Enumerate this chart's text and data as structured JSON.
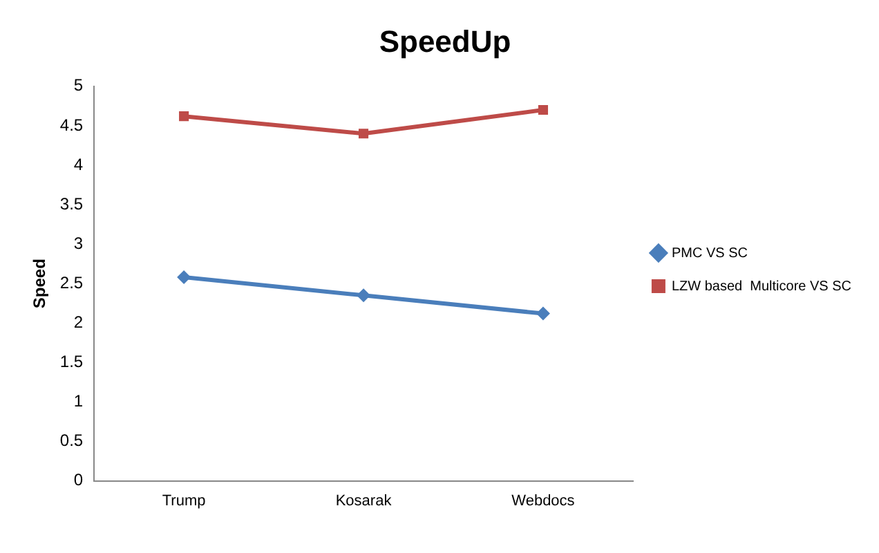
{
  "chart_data": {
    "type": "line",
    "title": "SpeedUp",
    "ylabel": "Speed",
    "categories": [
      "Trump",
      "Kosarak",
      "Webdocs"
    ],
    "series": [
      {
        "name": "PMC VS SC",
        "color": "#4a7ebb",
        "marker": "diamond",
        "values": [
          2.58,
          2.35,
          2.12
        ]
      },
      {
        "name": "LZW based  Multicore VS SC",
        "color": "#be4b48",
        "marker": "square",
        "values": [
          4.62,
          4.4,
          4.7
        ]
      }
    ],
    "ylim": [
      0,
      5
    ],
    "yticks": [
      0,
      0.5,
      1,
      1.5,
      2,
      2.5,
      3,
      3.5,
      4,
      4.5,
      5
    ],
    "grid": false,
    "legend": "right",
    "line_style": "solid"
  }
}
